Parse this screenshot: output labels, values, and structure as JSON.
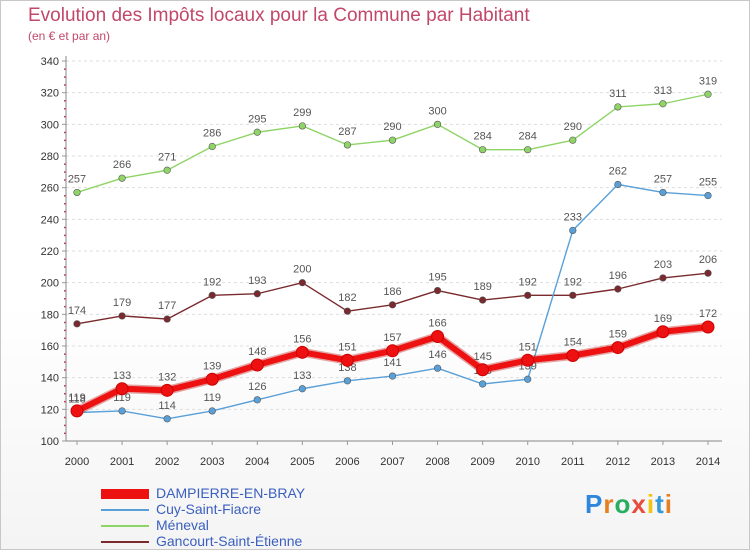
{
  "title": "Evolution des Impôts locaux pour la Commune par Habitant",
  "subtitle": "(en € et par an)",
  "logo": "Proxiti",
  "chart_data": {
    "type": "line",
    "x": [
      2000,
      2001,
      2002,
      2003,
      2004,
      2005,
      2006,
      2007,
      2008,
      2009,
      2010,
      2011,
      2012,
      2013,
      2014
    ],
    "ylim": [
      100,
      340
    ],
    "yticks": [
      100,
      120,
      140,
      160,
      180,
      200,
      220,
      240,
      260,
      280,
      300,
      320,
      340
    ],
    "grid": "horizontal-dashed",
    "legend_position": "bottom-left",
    "series": [
      {
        "name": "Méneval",
        "color": "#8fd466",
        "labels": [
          "257",
          "266",
          "271",
          "286",
          "295",
          "299",
          "287",
          "290",
          "300",
          "284",
          "284",
          "290",
          "311",
          "313",
          "319"
        ],
        "values": [
          257,
          266,
          271,
          286,
          295,
          299,
          287,
          290,
          300,
          284,
          284,
          290,
          311,
          313,
          319
        ]
      },
      {
        "name": "Gancourt-Saint-Étienne",
        "color": "#7a2a2e",
        "labels": [
          "174",
          "179",
          "177",
          "192",
          "193",
          "200",
          "182",
          "186",
          "195",
          "189",
          "192",
          "192",
          "196",
          "203",
          "206"
        ],
        "values": [
          174,
          179,
          177,
          192,
          193,
          200,
          182,
          186,
          195,
          189,
          192,
          192,
          196,
          203,
          206
        ]
      },
      {
        "name": "Cuy-Saint-Fiacre",
        "color": "#5aa0d8",
        "labels": [
          "118",
          "119",
          "114",
          "119",
          "126",
          "133",
          "138",
          "141",
          "146",
          "136",
          "139",
          "233",
          "262",
          "257",
          "255"
        ],
        "values": [
          118,
          119,
          114,
          119,
          126,
          133,
          138,
          141,
          146,
          136,
          139,
          233,
          262,
          257,
          255
        ]
      },
      {
        "name": "DAMPIERRE-EN-BRAY",
        "color": "#ee1111",
        "labels": [
          "119",
          "133",
          "132",
          "139",
          "148",
          "156",
          "151",
          "157",
          "166",
          "145",
          "151",
          "154",
          "159",
          "169",
          "172"
        ],
        "values": [
          119,
          133,
          132,
          139,
          148,
          156,
          151,
          157,
          166,
          145,
          151,
          154,
          159,
          169,
          172
        ]
      }
    ],
    "legend_order": [
      "DAMPIERRE-EN-BRAY",
      "Cuy-Saint-Fiacre",
      "Méneval",
      "Gancourt-Saint-Étienne"
    ]
  }
}
